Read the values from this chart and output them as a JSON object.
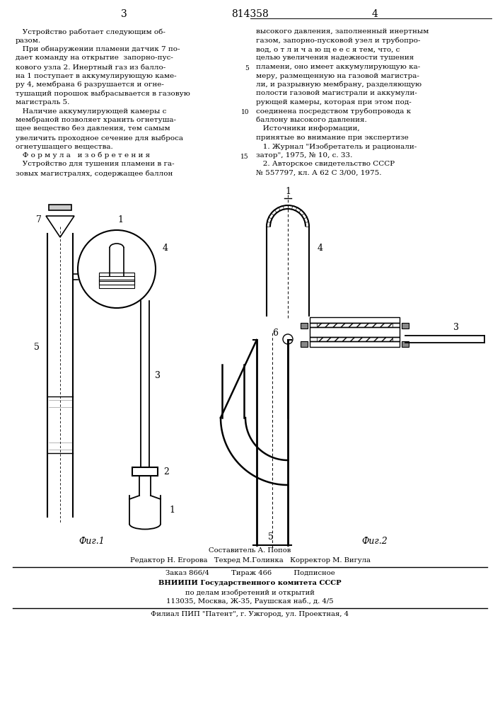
{
  "page_number_left": "3",
  "patent_number": "814358",
  "page_number_right": "4",
  "col_left_text": [
    "   Устройство работает следующим об-",
    "разом.",
    "   При обнаружении пламени датчик 7 по-",
    "дает команду на открытие  запорно-пус-",
    "кового узла 2. Инертный газ из балло-",
    "на 1 поступает в аккумулирующую каме-",
    "ру 4, мембрана 6 разрушается и огне-",
    "тушащий порошок выбрасывается в газовую",
    "магистраль 5.",
    "   Наличие аккумулирующей камеры с",
    "мембраной позволяет хранить огнетуша-",
    "щее вещество без давления, тем самым",
    "увеличить проходное сечение для выброса",
    "огнетушащего вещества.",
    "   Ф о р м у л а   и з о б р е т е н и я",
    "   Устройство для тушения пламени в га-",
    "зовых магистралях, содержащее баллон"
  ],
  "col_right_text": [
    "высокого давления, заполненный инертным",
    "газом, запорно-пусковой узел и трубопро-",
    "вод, о т л и ч а ю щ е е с я тем, что, с",
    "целью увеличения надежности тушения",
    "пламени, оно имеет аккумулирующую ка-",
    "меру, размещенную на газовой магистра-",
    "ли, и разрывную мембрану, разделяющую",
    "полости газовой магистрали и аккумули-",
    "рующей камеры, которая при этом под-",
    "соединена посредством трубопровода к",
    "баллону высокого давления.",
    "   Источники информации,",
    "принятые во внимание при экспертизе",
    "   1. Журнал \"Изобретатель и рационали-",
    "затор\", 1975, № 10, с. 33.",
    "   2. Авторское свидетельство СССР",
    "№ 557797, кл. А 62 С 3/00, 1975."
  ],
  "line_numbers": [
    "5",
    "10",
    "15"
  ],
  "footer_line1": "Составитель А. Попов",
  "footer_line2": "Редактор Н. Егорова   Техред М.Голинка   Корректор М. Вигула",
  "footer_line3": "Заказ 866/4          Тираж 466          Подписное",
  "footer_line4": "ВНИИПИ Государственного комитета СССР",
  "footer_line5": "по делам изобретений и открытий",
  "footer_line6": "113035, Москва, Ж-35, Раушская наб., д. 4/5",
  "footer_line7": "Филиал ПИП \"Патент\", г. Ужгород, ул. Проектная, 4",
  "fig_caption1": "Фиг.1",
  "fig_caption2": "Фиг.2",
  "bg_color": "#ffffff",
  "text_color": "#000000",
  "font_size_body": 7.5,
  "font_size_footer": 7.2
}
